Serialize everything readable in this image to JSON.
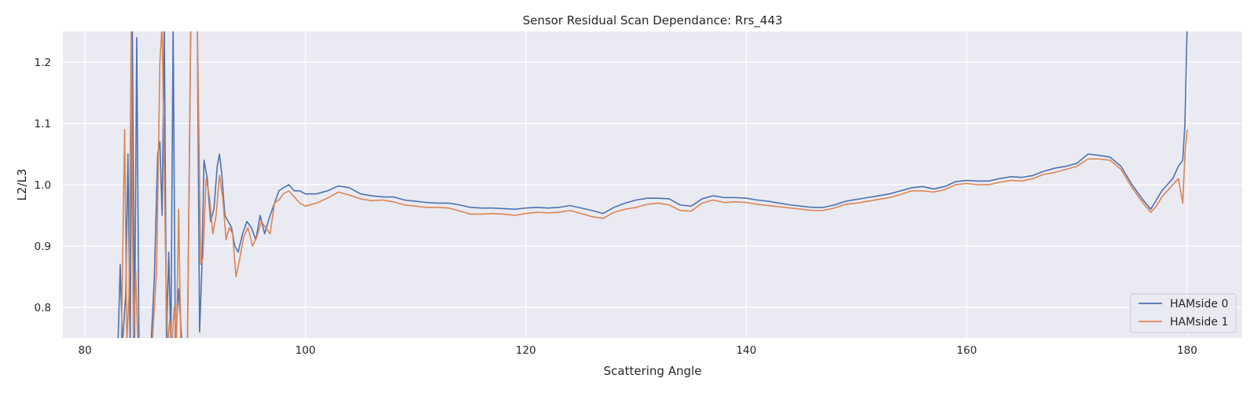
{
  "chart_data": {
    "type": "line",
    "title": "Sensor Residual Scan Dependance: Rrs_443",
    "xlabel": "Scattering Angle",
    "ylabel": "L2/L3",
    "xlim": [
      78,
      185
    ],
    "ylim": [
      0.75,
      1.25
    ],
    "x_ticks": [
      80,
      100,
      120,
      140,
      160,
      180
    ],
    "y_ticks": [
      0.8,
      0.9,
      1.0,
      1.1,
      1.2
    ],
    "x_tick_labels": [
      "80",
      "100",
      "120",
      "140",
      "160",
      "180"
    ],
    "y_tick_labels": [
      "0.8",
      "0.9",
      "1.0",
      "1.1",
      "1.2"
    ],
    "grid": true,
    "background": "#eaeaf2",
    "legend_position": "lower-right",
    "series": [
      {
        "name": "HAMside 0",
        "color": "#4c72b0",
        "points": [
          [
            83.0,
            0.74
          ],
          [
            83.2,
            0.87
          ],
          [
            83.4,
            0.74
          ],
          [
            83.7,
            0.82
          ],
          [
            83.9,
            1.05
          ],
          [
            84.1,
            0.74
          ],
          [
            84.3,
            1.26
          ],
          [
            84.5,
            0.74
          ],
          [
            84.7,
            1.24
          ],
          [
            84.9,
            0.74
          ],
          [
            86.0,
            0.74
          ],
          [
            86.3,
            0.85
          ],
          [
            86.6,
            1.05
          ],
          [
            86.8,
            1.07
          ],
          [
            87.0,
            0.95
          ],
          [
            87.2,
            1.26
          ],
          [
            87.4,
            0.74
          ],
          [
            87.6,
            0.89
          ],
          [
            87.8,
            0.74
          ],
          [
            88.0,
            1.26
          ],
          [
            88.2,
            0.74
          ],
          [
            88.5,
            0.83
          ],
          [
            88.8,
            0.74
          ],
          [
            89.3,
            0.74
          ],
          [
            89.6,
            1.26
          ],
          [
            89.9,
            1.26
          ],
          [
            90.2,
            1.26
          ],
          [
            90.4,
            0.76
          ],
          [
            90.6,
            0.86
          ],
          [
            90.8,
            1.04
          ],
          [
            91.1,
            1.01
          ],
          [
            91.4,
            0.94
          ],
          [
            91.7,
            0.96
          ],
          [
            92.0,
            1.03
          ],
          [
            92.2,
            1.05
          ],
          [
            92.4,
            1.02
          ],
          [
            92.7,
            0.95
          ],
          [
            93.0,
            0.94
          ],
          [
            93.3,
            0.93
          ],
          [
            93.6,
            0.9
          ],
          [
            93.9,
            0.89
          ],
          [
            94.3,
            0.92
          ],
          [
            94.7,
            0.94
          ],
          [
            95.1,
            0.93
          ],
          [
            95.5,
            0.91
          ],
          [
            95.9,
            0.95
          ],
          [
            96.3,
            0.92
          ],
          [
            96.8,
            0.95
          ],
          [
            97.2,
            0.97
          ],
          [
            97.6,
            0.99
          ],
          [
            98.0,
            0.995
          ],
          [
            98.5,
            1.0
          ],
          [
            99.0,
            0.99
          ],
          [
            99.5,
            0.99
          ],
          [
            100.0,
            0.985
          ],
          [
            101.0,
            0.985
          ],
          [
            102.0,
            0.99
          ],
          [
            103.0,
            0.998
          ],
          [
            104.0,
            0.995
          ],
          [
            105.0,
            0.985
          ],
          [
            106.0,
            0.982
          ],
          [
            107.0,
            0.98
          ],
          [
            108.0,
            0.98
          ],
          [
            109.0,
            0.975
          ],
          [
            110.0,
            0.973
          ],
          [
            111.0,
            0.971
          ],
          [
            112.0,
            0.97
          ],
          [
            113.0,
            0.97
          ],
          [
            114.0,
            0.967
          ],
          [
            115.0,
            0.963
          ],
          [
            116.0,
            0.962
          ],
          [
            117.0,
            0.962
          ],
          [
            118.0,
            0.961
          ],
          [
            119.0,
            0.96
          ],
          [
            120.0,
            0.962
          ],
          [
            121.0,
            0.963
          ],
          [
            122.0,
            0.962
          ],
          [
            123.0,
            0.963
          ],
          [
            124.0,
            0.966
          ],
          [
            125.0,
            0.962
          ],
          [
            126.0,
            0.958
          ],
          [
            127.0,
            0.953
          ],
          [
            128.0,
            0.963
          ],
          [
            129.0,
            0.97
          ],
          [
            130.0,
            0.975
          ],
          [
            131.0,
            0.978
          ],
          [
            132.0,
            0.978
          ],
          [
            133.0,
            0.977
          ],
          [
            134.0,
            0.967
          ],
          [
            135.0,
            0.965
          ],
          [
            136.0,
            0.977
          ],
          [
            137.0,
            0.982
          ],
          [
            138.0,
            0.979
          ],
          [
            139.0,
            0.979
          ],
          [
            140.0,
            0.978
          ],
          [
            141.0,
            0.975
          ],
          [
            142.0,
            0.973
          ],
          [
            143.0,
            0.97
          ],
          [
            144.0,
            0.967
          ],
          [
            145.0,
            0.965
          ],
          [
            146.0,
            0.963
          ],
          [
            147.0,
            0.963
          ],
          [
            148.0,
            0.967
          ],
          [
            149.0,
            0.973
          ],
          [
            150.0,
            0.976
          ],
          [
            151.0,
            0.979
          ],
          [
            152.0,
            0.982
          ],
          [
            153.0,
            0.985
          ],
          [
            154.0,
            0.99
          ],
          [
            155.0,
            0.995
          ],
          [
            156.0,
            0.997
          ],
          [
            157.0,
            0.993
          ],
          [
            158.0,
            0.997
          ],
          [
            159.0,
            1.005
          ],
          [
            160.0,
            1.007
          ],
          [
            161.0,
            1.006
          ],
          [
            162.0,
            1.006
          ],
          [
            163.0,
            1.01
          ],
          [
            164.0,
            1.013
          ],
          [
            165.0,
            1.012
          ],
          [
            166.0,
            1.015
          ],
          [
            167.0,
            1.022
          ],
          [
            168.0,
            1.027
          ],
          [
            169.0,
            1.03
          ],
          [
            170.0,
            1.035
          ],
          [
            171.0,
            1.05
          ],
          [
            172.0,
            1.048
          ],
          [
            173.0,
            1.045
          ],
          [
            174.0,
            1.03
          ],
          [
            175.0,
            1.0
          ],
          [
            176.0,
            0.975
          ],
          [
            176.7,
            0.96
          ],
          [
            177.2,
            0.975
          ],
          [
            177.7,
            0.99
          ],
          [
            178.2,
            1.0
          ],
          [
            178.7,
            1.01
          ],
          [
            179.2,
            1.03
          ],
          [
            179.6,
            1.04
          ],
          [
            179.8,
            1.1
          ],
          [
            180.0,
            1.26
          ]
        ]
      },
      {
        "name": "HAMside 1",
        "color": "#dd8452",
        "points": [
          [
            83.3,
            0.74
          ],
          [
            83.6,
            1.09
          ],
          [
            83.8,
            0.74
          ],
          [
            84.0,
            0.82
          ],
          [
            84.2,
            1.26
          ],
          [
            84.4,
            0.74
          ],
          [
            84.6,
            0.86
          ],
          [
            84.8,
            0.74
          ],
          [
            86.1,
            0.74
          ],
          [
            86.5,
            0.86
          ],
          [
            86.8,
            1.2
          ],
          [
            87.0,
            1.26
          ],
          [
            87.3,
            0.9
          ],
          [
            87.5,
            0.74
          ],
          [
            87.7,
            0.78
          ],
          [
            87.9,
            0.74
          ],
          [
            88.1,
            0.8
          ],
          [
            88.3,
            0.74
          ],
          [
            88.5,
            0.96
          ],
          [
            88.7,
            0.74
          ],
          [
            89.3,
            0.74
          ],
          [
            89.6,
            1.25
          ],
          [
            89.9,
            1.26
          ],
          [
            90.2,
            1.26
          ],
          [
            90.5,
            0.87
          ],
          [
            90.7,
            0.88
          ],
          [
            91.0,
            1.01
          ],
          [
            91.3,
            0.98
          ],
          [
            91.6,
            0.92
          ],
          [
            91.9,
            0.95
          ],
          [
            92.2,
            1.015
          ],
          [
            92.5,
            0.98
          ],
          [
            92.8,
            0.91
          ],
          [
            93.1,
            0.93
          ],
          [
            93.4,
            0.92
          ],
          [
            93.7,
            0.85
          ],
          [
            94.0,
            0.875
          ],
          [
            94.4,
            0.915
          ],
          [
            94.8,
            0.93
          ],
          [
            95.2,
            0.9
          ],
          [
            95.6,
            0.915
          ],
          [
            96.0,
            0.94
          ],
          [
            96.4,
            0.93
          ],
          [
            96.8,
            0.92
          ],
          [
            97.2,
            0.97
          ],
          [
            97.6,
            0.975
          ],
          [
            98.0,
            0.985
          ],
          [
            98.5,
            0.99
          ],
          [
            99.0,
            0.98
          ],
          [
            99.5,
            0.97
          ],
          [
            100.0,
            0.965
          ],
          [
            101.0,
            0.97
          ],
          [
            102.0,
            0.978
          ],
          [
            103.0,
            0.988
          ],
          [
            104.0,
            0.983
          ],
          [
            105.0,
            0.977
          ],
          [
            106.0,
            0.974
          ],
          [
            107.0,
            0.975
          ],
          [
            108.0,
            0.972
          ],
          [
            109.0,
            0.967
          ],
          [
            110.0,
            0.965
          ],
          [
            111.0,
            0.963
          ],
          [
            112.0,
            0.963
          ],
          [
            113.0,
            0.962
          ],
          [
            114.0,
            0.957
          ],
          [
            115.0,
            0.952
          ],
          [
            116.0,
            0.952
          ],
          [
            117.0,
            0.953
          ],
          [
            118.0,
            0.952
          ],
          [
            119.0,
            0.95
          ],
          [
            120.0,
            0.953
          ],
          [
            121.0,
            0.955
          ],
          [
            122.0,
            0.954
          ],
          [
            123.0,
            0.955
          ],
          [
            124.0,
            0.958
          ],
          [
            125.0,
            0.953
          ],
          [
            126.0,
            0.948
          ],
          [
            127.0,
            0.945
          ],
          [
            128.0,
            0.955
          ],
          [
            129.0,
            0.96
          ],
          [
            130.0,
            0.963
          ],
          [
            131.0,
            0.968
          ],
          [
            132.0,
            0.97
          ],
          [
            133.0,
            0.967
          ],
          [
            134.0,
            0.958
          ],
          [
            135.0,
            0.957
          ],
          [
            136.0,
            0.97
          ],
          [
            137.0,
            0.975
          ],
          [
            138.0,
            0.971
          ],
          [
            139.0,
            0.972
          ],
          [
            140.0,
            0.971
          ],
          [
            141.0,
            0.968
          ],
          [
            142.0,
            0.966
          ],
          [
            143.0,
            0.964
          ],
          [
            144.0,
            0.962
          ],
          [
            145.0,
            0.96
          ],
          [
            146.0,
            0.958
          ],
          [
            147.0,
            0.958
          ],
          [
            148.0,
            0.962
          ],
          [
            149.0,
            0.968
          ],
          [
            150.0,
            0.97
          ],
          [
            151.0,
            0.973
          ],
          [
            152.0,
            0.976
          ],
          [
            153.0,
            0.979
          ],
          [
            154.0,
            0.984
          ],
          [
            155.0,
            0.99
          ],
          [
            156.0,
            0.99
          ],
          [
            157.0,
            0.988
          ],
          [
            158.0,
            0.992
          ],
          [
            159.0,
            1.0
          ],
          [
            160.0,
            1.002
          ],
          [
            161.0,
            1.0
          ],
          [
            162.0,
            1.0
          ],
          [
            163.0,
            1.004
          ],
          [
            164.0,
            1.007
          ],
          [
            165.0,
            1.006
          ],
          [
            166.0,
            1.01
          ],
          [
            167.0,
            1.017
          ],
          [
            168.0,
            1.02
          ],
          [
            169.0,
            1.025
          ],
          [
            170.0,
            1.03
          ],
          [
            171.0,
            1.042
          ],
          [
            172.0,
            1.042
          ],
          [
            173.0,
            1.04
          ],
          [
            174.0,
            1.025
          ],
          [
            175.0,
            0.995
          ],
          [
            176.0,
            0.97
          ],
          [
            176.7,
            0.955
          ],
          [
            177.2,
            0.965
          ],
          [
            177.7,
            0.98
          ],
          [
            178.2,
            0.99
          ],
          [
            178.7,
            1.0
          ],
          [
            179.2,
            1.01
          ],
          [
            179.6,
            0.97
          ],
          [
            179.8,
            1.05
          ],
          [
            180.0,
            1.09
          ]
        ]
      }
    ]
  }
}
